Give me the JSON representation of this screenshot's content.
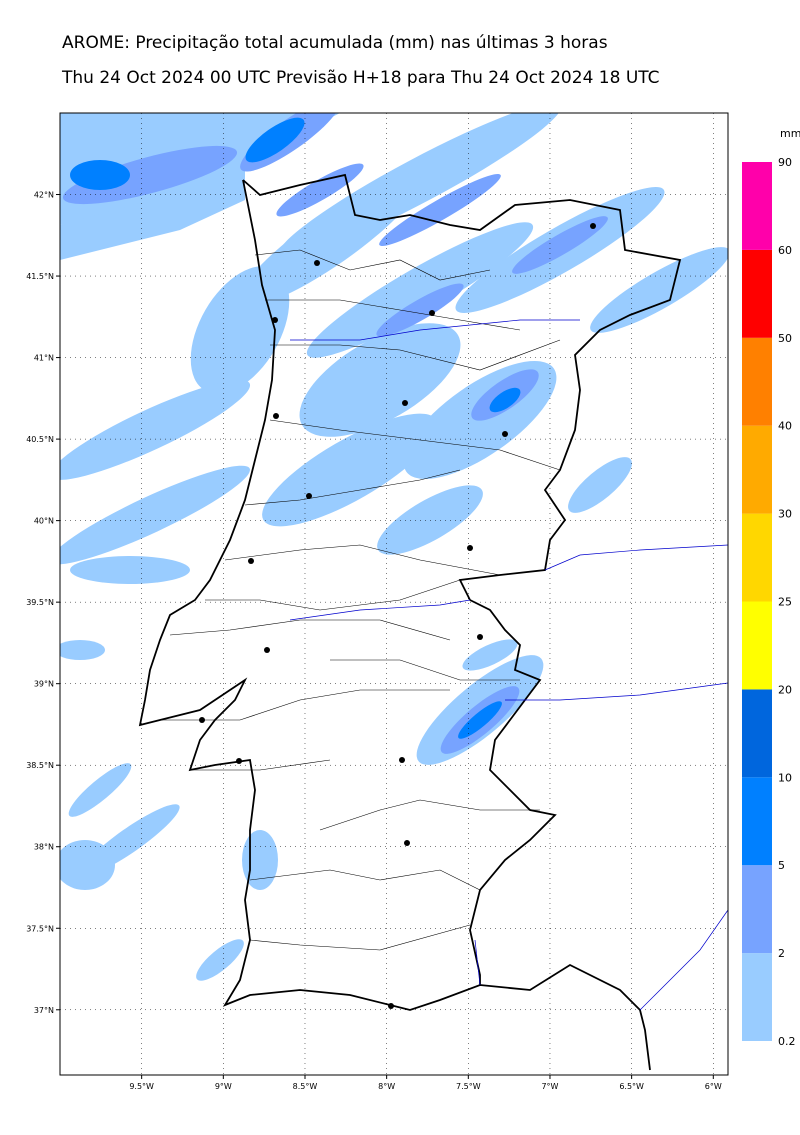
{
  "title": "AROME: Precipitação total acumulada (mm) nas últimas 3 horas",
  "subtitle": "Thu 24 Oct 2024 00 UTC Previsão H+18 para Thu 24 Oct 2024 18 UTC",
  "map": {
    "lon_extent": [
      -10,
      -5.91
    ],
    "lat_extent": [
      36.6,
      42.5
    ],
    "lat_ticks": [
      {
        "value": 42,
        "label": "42°N"
      },
      {
        "value": 41.5,
        "label": "41.5°N"
      },
      {
        "value": 41,
        "label": "41°N"
      },
      {
        "value": 40.5,
        "label": "40.5°N"
      },
      {
        "value": 40,
        "label": "40°N"
      },
      {
        "value": 39.5,
        "label": "39.5°N"
      },
      {
        "value": 39,
        "label": "39°N"
      },
      {
        "value": 38.5,
        "label": "38.5°N"
      },
      {
        "value": 38,
        "label": "38°N"
      },
      {
        "value": 37.5,
        "label": "37.5°N"
      },
      {
        "value": 37,
        "label": "37°N"
      }
    ],
    "lon_ticks": [
      {
        "value": -9.5,
        "label": "9.5°W"
      },
      {
        "value": -9,
        "label": "9°W"
      },
      {
        "value": -8.5,
        "label": "8.5°W"
      },
      {
        "value": -8,
        "label": "8°W"
      },
      {
        "value": -7.5,
        "label": "7.5°W"
      },
      {
        "value": -7,
        "label": "7°W"
      },
      {
        "value": -6.5,
        "label": "6.5°W"
      },
      {
        "value": -6,
        "label": "6°W"
      }
    ]
  },
  "colorbar": {
    "unit": "mm",
    "levels": [
      0.2,
      2,
      5,
      10,
      20,
      25,
      30,
      40,
      50,
      60,
      90
    ],
    "colors": [
      "#99ccff",
      "#77a3ff",
      "#0080ff",
      "#0066dd",
      "#ffff00",
      "#ffd700",
      "#ffaa00",
      "#ff8000",
      "#ff0000",
      "#ff00aa"
    ]
  }
}
